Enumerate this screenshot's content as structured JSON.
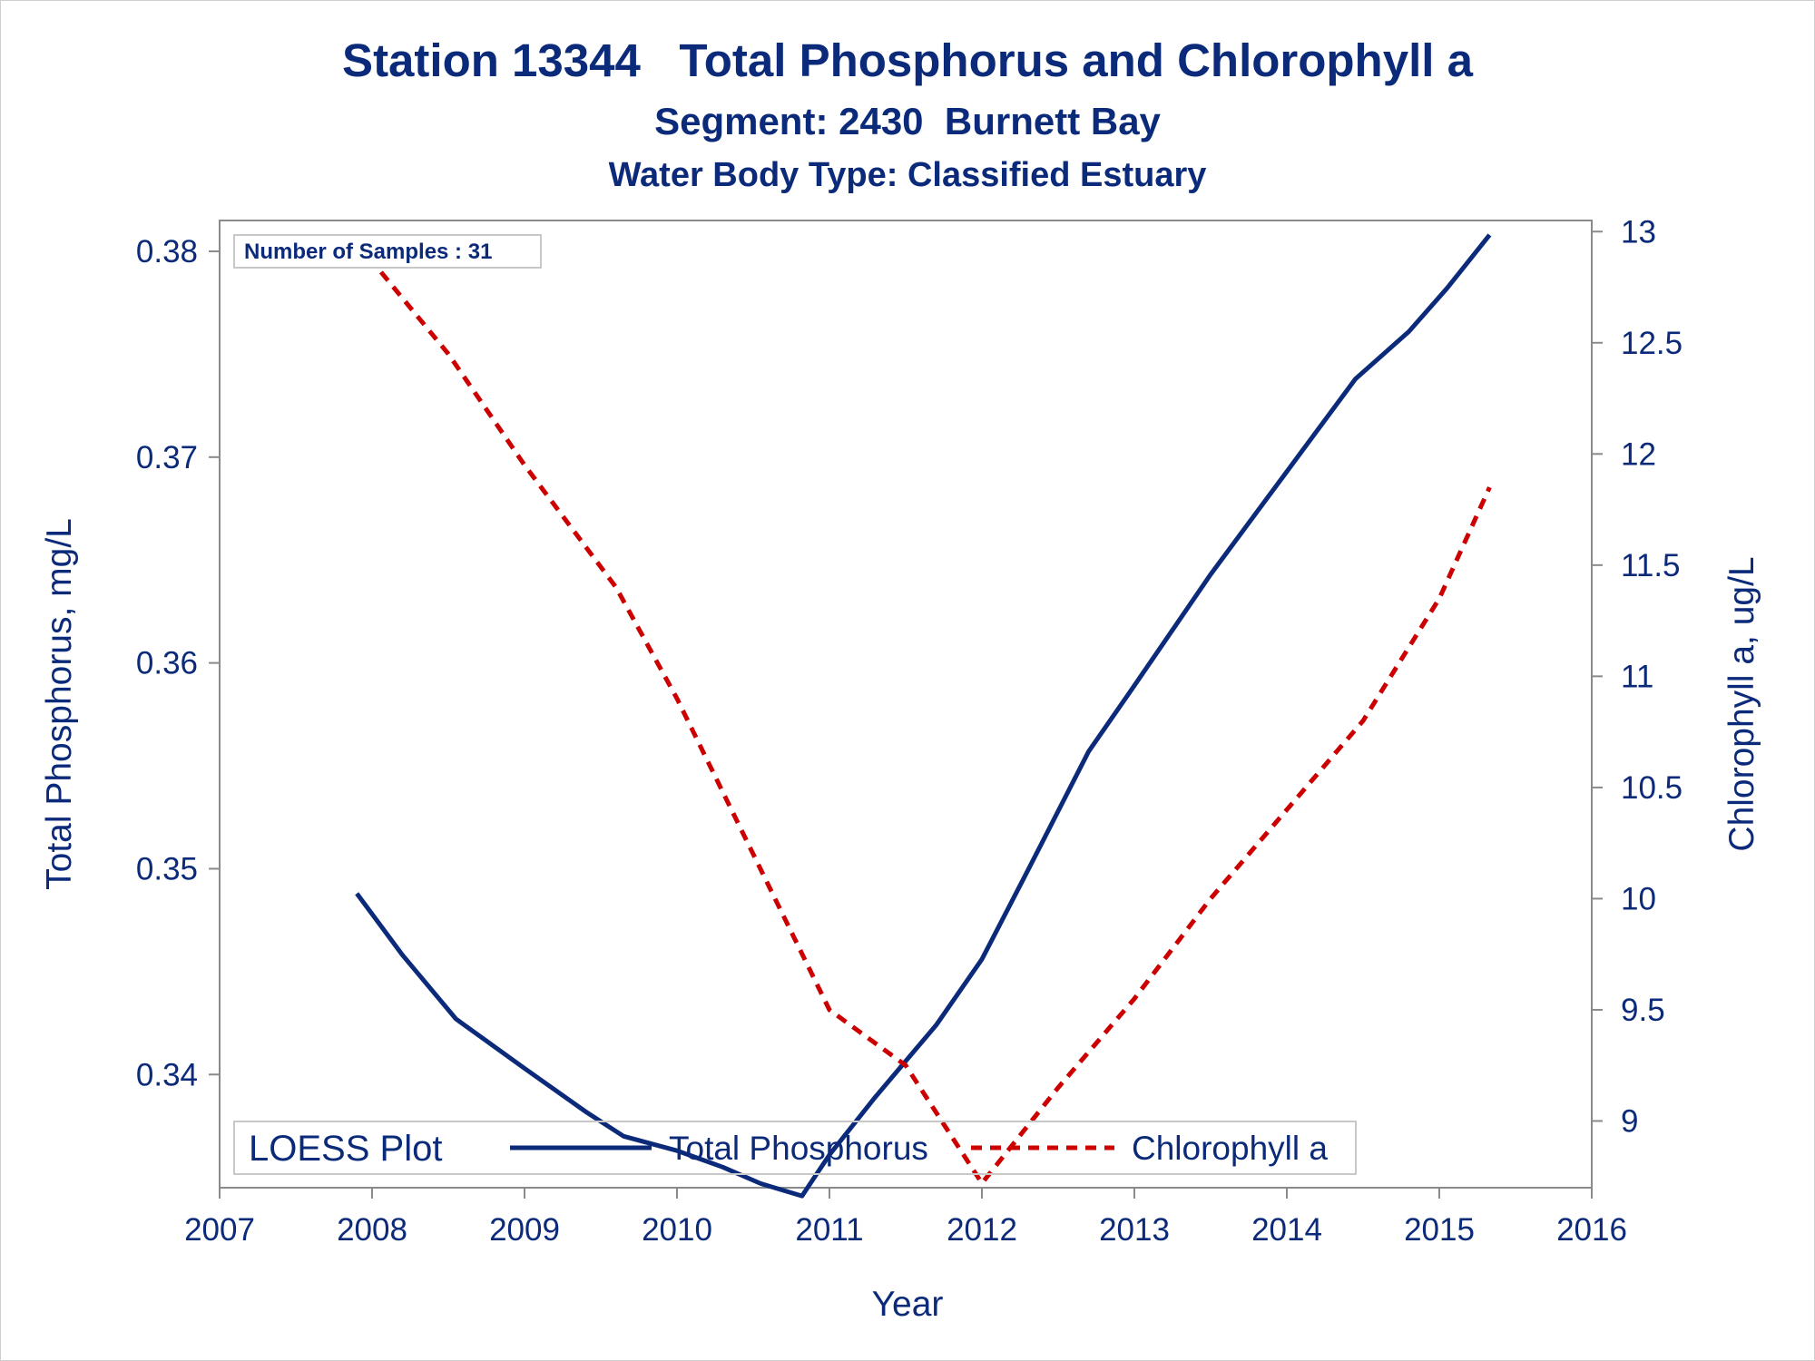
{
  "chart_data": {
    "type": "line",
    "title": "Station 13344   Total Phosphorus and Chlorophyll a",
    "subtitle": "Segment: 2430  Burnett Bay",
    "subtitle2": "Water Body Type: Classified Estuary",
    "xlabel": "Year",
    "ylabel": "Total Phosphorus, mg/L",
    "y2label": "Chlorophyll a, ug/L",
    "xlim": [
      2007,
      2016
    ],
    "ylim": [
      0.3345,
      0.3815
    ],
    "y2lim": [
      8.7,
      13.05
    ],
    "x_ticks": [
      "2007",
      "2008",
      "2009",
      "2010",
      "2011",
      "2012",
      "2013",
      "2014",
      "2015",
      "2016"
    ],
    "y_ticks": [
      "0.34",
      "0.35",
      "0.36",
      "0.37",
      "0.38"
    ],
    "y2_ticks": [
      "9",
      "9.5",
      "10",
      "10.5",
      "11",
      "11.5",
      "12",
      "12.5",
      "13"
    ],
    "grid": false,
    "inset": "Number of Samples : 31",
    "legend": {
      "position": "bottom-left",
      "title": "LOESS Plot",
      "entries": [
        "Total Phosphorus",
        "Chlorophyll a"
      ]
    },
    "series": [
      {
        "name": "Total Phosphorus",
        "axis": "left",
        "color": "#0b2a7a",
        "style": "solid",
        "x": [
          2007.9,
          2008.2,
          2008.55,
          2009.0,
          2009.4,
          2009.65,
          2010.0,
          2010.3,
          2010.55,
          2010.82,
          2011.0,
          2011.3,
          2011.7,
          2012.0,
          2012.3,
          2012.7,
          2013.0,
          2013.5,
          2014.0,
          2014.45,
          2014.8,
          2015.05,
          2015.33
        ],
        "values": [
          0.3488,
          0.3458,
          0.3427,
          0.3403,
          0.3382,
          0.337,
          0.3363,
          0.3355,
          0.3347,
          0.3341,
          0.3361,
          0.3389,
          0.3424,
          0.3456,
          0.3499,
          0.3557,
          0.3589,
          0.3643,
          0.3693,
          0.3738,
          0.3761,
          0.3782,
          0.3808
        ]
      },
      {
        "name": "Chlorophyll a",
        "axis": "right",
        "color": "#cc0000",
        "style": "dashed",
        "x": [
          2007.9,
          2008.5,
          2009.0,
          2009.6,
          2010.0,
          2010.5,
          2011.0,
          2011.5,
          2012.0,
          2012.5,
          2013.0,
          2013.5,
          2014.0,
          2014.5,
          2015.0,
          2015.33
        ],
        "values": [
          12.95,
          12.45,
          11.95,
          11.4,
          10.9,
          10.2,
          9.5,
          9.25,
          8.72,
          9.15,
          9.55,
          10.0,
          10.4,
          10.8,
          11.35,
          11.85
        ]
      }
    ]
  }
}
